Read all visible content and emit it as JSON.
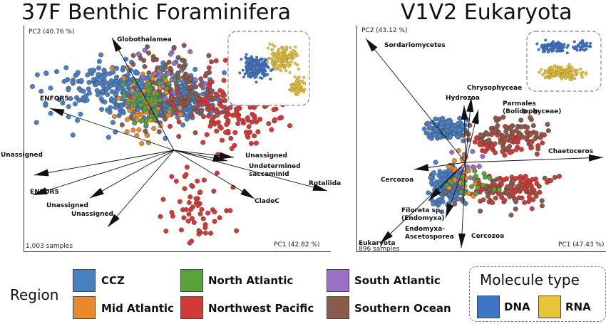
{
  "chart_data": [
    {
      "type": "scatter",
      "title": "37F Benthic Foraminifera",
      "xlabel": "PC1 (42.82 %)",
      "ylabel": "PC2 (40.76 %)",
      "sample_count": "1,003 samples",
      "series": [
        {
          "name": "CCZ",
          "color": "#4a7fc1"
        },
        {
          "name": "Mid Atlantic",
          "color": "#e8892b"
        },
        {
          "name": "North Atlantic",
          "color": "#5aa33a"
        },
        {
          "name": "Northwest Pacific",
          "color": "#d13a36"
        },
        {
          "name": "South Atlantic",
          "color": "#9a6fc6"
        },
        {
          "name": "Southern Ocean",
          "color": "#8a5a4a"
        }
      ],
      "loadings": [
        {
          "label": "Globothalamea",
          "dx": -0.25,
          "dy": 0.95
        },
        {
          "label": "ENFOR5",
          "dx": -0.85,
          "dy": 0.55
        },
        {
          "label": "Unassigned",
          "dx": -0.95,
          "dy": 0.1
        },
        {
          "label": "ENFOR5",
          "dx": -0.95,
          "dy": -0.35
        },
        {
          "label": "Unassigned",
          "dx": -0.55,
          "dy": -0.45
        },
        {
          "label": "Unassigned",
          "dx": -0.45,
          "dy": -0.75
        },
        {
          "label": "Unassigned",
          "dx": 0.6,
          "dy": -0.05
        },
        {
          "label": "Undetermined saccaminid",
          "dx": 0.55,
          "dy": -0.15
        },
        {
          "label": "Rotaliida",
          "dx": 1.0,
          "dy": -0.45
        },
        {
          "label": "CladeC",
          "dx": 0.6,
          "dy": -0.55
        }
      ],
      "inset": {
        "series": [
          {
            "name": "DNA"
          },
          {
            "name": "RNA"
          }
        ]
      }
    },
    {
      "type": "scatter",
      "title": "V1V2 Eukaryota",
      "xlabel": "PC1 (47.43 %)",
      "ylabel": "PC2 (43.12 %)",
      "sample_count": "896 samples",
      "series": [
        {
          "name": "CCZ",
          "color": "#4a7fc1"
        },
        {
          "name": "Mid Atlantic",
          "color": "#e8892b"
        },
        {
          "name": "North Atlantic",
          "color": "#5aa33a"
        },
        {
          "name": "Northwest Pacific",
          "color": "#d13a36"
        },
        {
          "name": "South Atlantic",
          "color": "#9a6fc6"
        },
        {
          "name": "Southern Ocean",
          "color": "#8a5a4a"
        }
      ],
      "loadings": [
        {
          "label": "Sordariomycetes",
          "dx": -0.9,
          "dy": 0.9
        },
        {
          "label": "Hydrozoa",
          "dx": -0.05,
          "dy": 0.45
        },
        {
          "label": "Chrysophyceae",
          "dx": 0.1,
          "dy": 0.55
        },
        {
          "label": "Parmales (Bolidophyceae)",
          "dx": 0.2,
          "dy": 0.4
        },
        {
          "label": "Chaetoceros",
          "dx": 1.0,
          "dy": 0.05
        },
        {
          "label": "Cercozoa",
          "dx": -0.3,
          "dy": -0.05
        },
        {
          "label": "Filoreta sp. (Endomyxa)",
          "dx": -0.25,
          "dy": -0.25
        },
        {
          "label": "Endomyxa-Ascetosporea",
          "dx": -0.15,
          "dy": -0.4
        },
        {
          "label": "Eukaryota",
          "dx": -0.6,
          "dy": -0.55
        },
        {
          "label": "Cercozoa",
          "dx": -0.05,
          "dy": -0.55
        }
      ],
      "inset": {
        "series": [
          {
            "name": "DNA"
          },
          {
            "name": "RNA"
          }
        ]
      }
    }
  ],
  "legend": {
    "region_title": "Region",
    "regions": [
      {
        "label": "CCZ",
        "color": "#4a7fc1"
      },
      {
        "label": "Mid Atlantic",
        "color": "#e8892b"
      },
      {
        "label": "North Atlantic",
        "color": "#5aa33a"
      },
      {
        "label": "Northwest Pacific",
        "color": "#d13a36"
      },
      {
        "label": "South Atlantic",
        "color": "#9a6fc6"
      },
      {
        "label": "Southern Ocean",
        "color": "#8a5a4a"
      }
    ],
    "molecule_title": "Molecule type",
    "molecules": [
      {
        "label": "DNA",
        "color": "#3f74c7"
      },
      {
        "label": "RNA",
        "color": "#e9c43a"
      }
    ]
  }
}
